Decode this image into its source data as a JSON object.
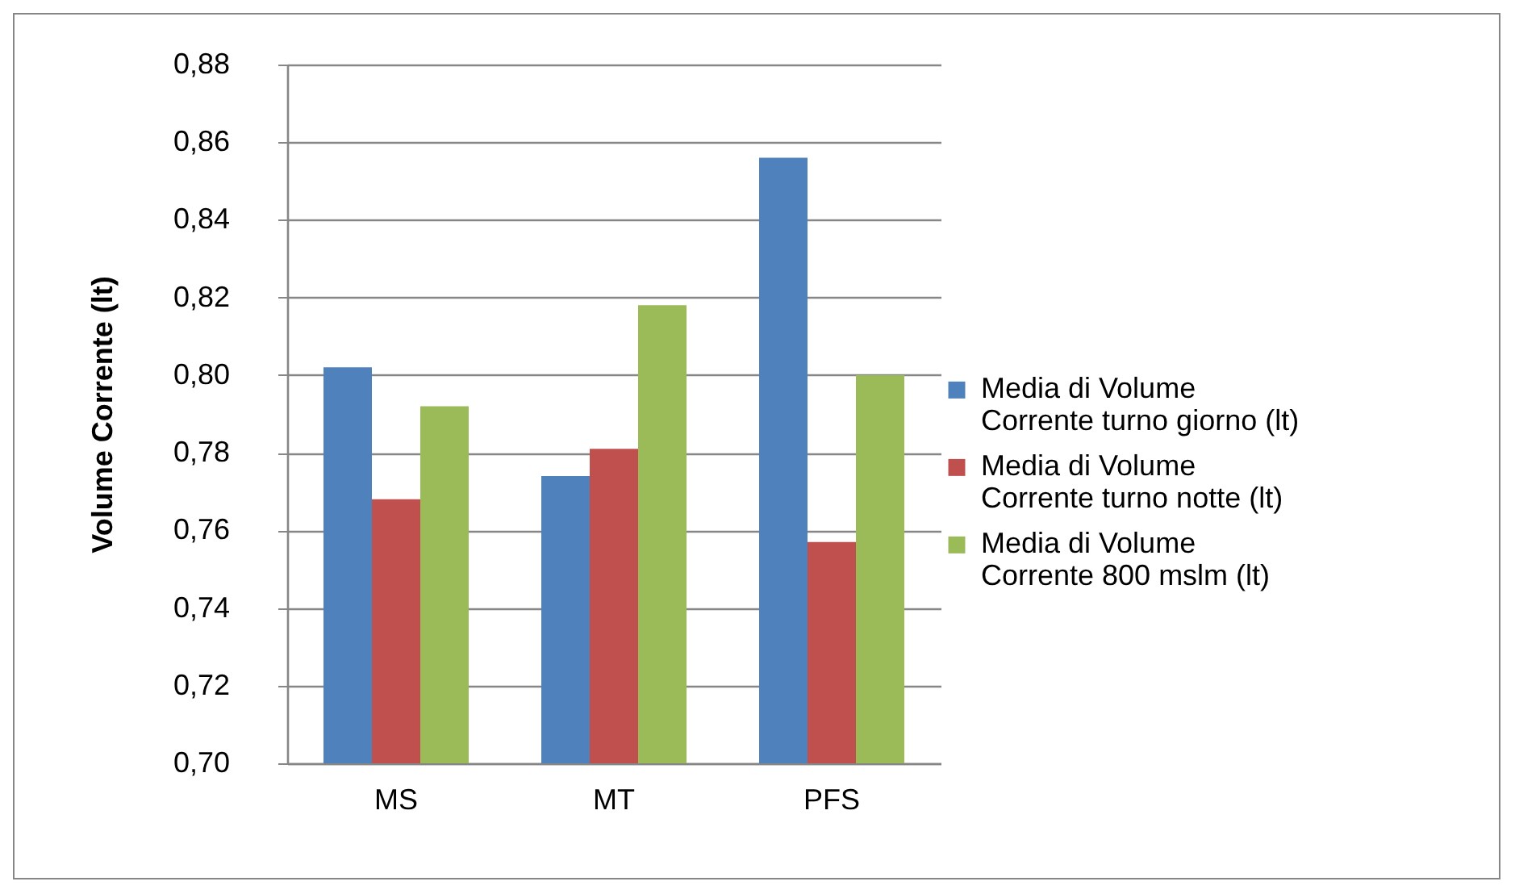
{
  "chart_data": {
    "type": "bar",
    "ylabel": "Volume Corrente (lt)",
    "categories": [
      "MS",
      "MT",
      "PFS"
    ],
    "series": [
      {
        "name": "Media di Volume Corrente turno giorno (lt)",
        "color": "#4f81bd",
        "values": [
          0.802,
          0.774,
          0.856
        ]
      },
      {
        "name": "Media di Volume Corrente turno notte (lt)",
        "color": "#c0504d",
        "values": [
          0.768,
          0.781,
          0.757
        ]
      },
      {
        "name": "Media di Volume Corrente 800 mslm (lt)",
        "color": "#9bbb59",
        "values": [
          0.792,
          0.818,
          0.8
        ]
      }
    ],
    "ylim": [
      0.7,
      0.88
    ],
    "yticks": [
      {
        "value": 0.7,
        "label": "0,70"
      },
      {
        "value": 0.72,
        "label": "0,72"
      },
      {
        "value": 0.74,
        "label": "0,74"
      },
      {
        "value": 0.76,
        "label": "0,76"
      },
      {
        "value": 0.78,
        "label": "0,78"
      },
      {
        "value": 0.8,
        "label": "0,80"
      },
      {
        "value": 0.82,
        "label": "0,82"
      },
      {
        "value": 0.84,
        "label": "0,84"
      },
      {
        "value": 0.86,
        "label": "0,86"
      },
      {
        "value": 0.88,
        "label": "0,88"
      }
    ],
    "grid": "y",
    "legend": "right"
  }
}
